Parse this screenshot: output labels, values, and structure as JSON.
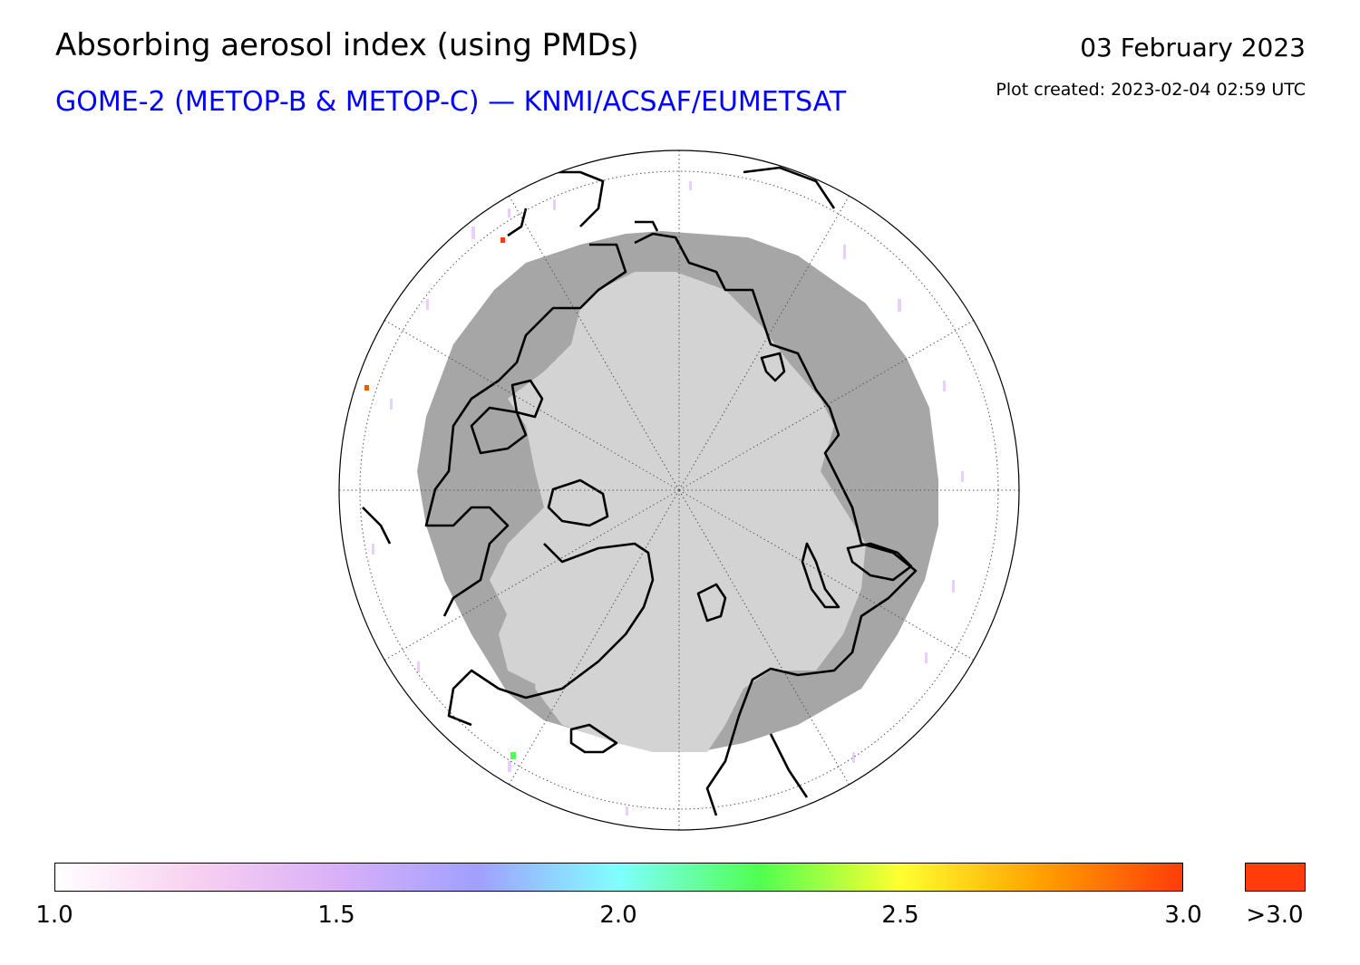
{
  "header": {
    "title": "Absorbing aerosol index (using PMDs)",
    "subtitle": "GOME-2 (METOP-B & METOP-C) — KNMI/ACSAF/EUMETSAT",
    "date": "03 February 2023",
    "created": "Plot created: 2023-02-04 02:59 UTC"
  },
  "map": {
    "projection": "north-polar stereographic",
    "graticule_meridians_deg": 30,
    "colors": {
      "land": "#a6a6a6",
      "polar_night": "#d3d3d3",
      "coast": "#000000",
      "graticule": "#555555"
    }
  },
  "colorbar": {
    "min": 1.0,
    "max": 3.0,
    "ticks": [
      "1.0",
      "1.5",
      "2.0",
      "2.5",
      "3.0"
    ],
    "overflow_label": ">3.0",
    "overflow_color": "#ff3c0a",
    "stops": [
      "#ffffff",
      "#f8d0f0",
      "#d9b0f8",
      "#a0a0ff",
      "#80ffff",
      "#50ff50",
      "#ffff30",
      "#ffa000",
      "#ff3c0a"
    ]
  }
}
